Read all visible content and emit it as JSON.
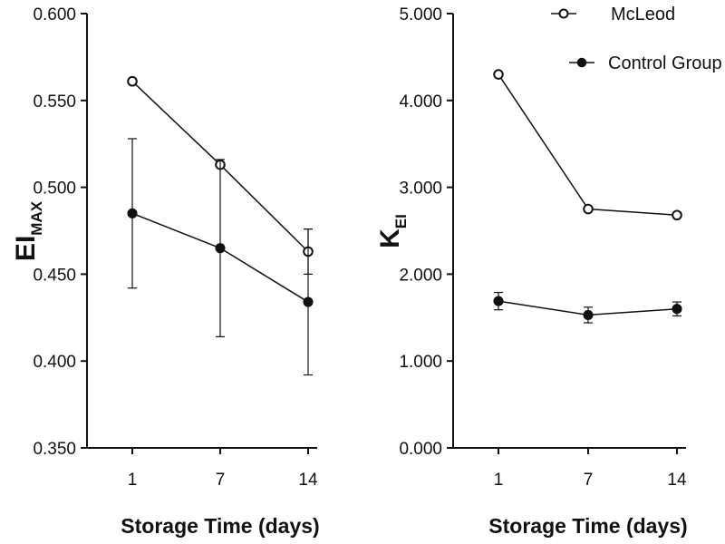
{
  "chart_data": [
    {
      "type": "line",
      "title": "",
      "ylabel_main": "EI",
      "ylabel_sub": "MAX",
      "xlabel": "Storage Time (days)",
      "categories": [
        "1",
        "7",
        "14"
      ],
      "ylim": [
        0.35,
        0.6
      ],
      "yticks": [
        "0.350",
        "0.400",
        "0.450",
        "0.500",
        "0.550",
        "0.600"
      ],
      "series": [
        {
          "name": "McLeod",
          "marker": "open-circle",
          "values": [
            0.561,
            0.513,
            0.463
          ],
          "errors": [
            0,
            0,
            0.013
          ]
        },
        {
          "name": "Control Group",
          "marker": "filled-circle",
          "values": [
            0.485,
            0.465,
            0.434
          ],
          "errors": [
            0.043,
            0.051,
            0.042
          ]
        }
      ]
    },
    {
      "type": "line",
      "title": "",
      "ylabel_main": "K",
      "ylabel_sub": "EI",
      "xlabel": "Storage Time (days)",
      "categories": [
        "1",
        "7",
        "14"
      ],
      "ylim": [
        0,
        5
      ],
      "yticks": [
        "0.000",
        "1.000",
        "2.000",
        "3.000",
        "4.000",
        "5.000"
      ],
      "legend_position": "top-right",
      "series": [
        {
          "name": "McLeod",
          "marker": "open-circle",
          "values": [
            4.3,
            2.75,
            2.68
          ],
          "errors": [
            0,
            0,
            0
          ]
        },
        {
          "name": "Control Group",
          "marker": "filled-circle",
          "values": [
            1.69,
            1.53,
            1.6
          ],
          "errors": [
            0.1,
            0.09,
            0.08
          ]
        }
      ]
    }
  ],
  "legend": {
    "items": [
      {
        "label": "McLeod",
        "marker": "open-circle"
      },
      {
        "label": "Control Group",
        "marker": "filled-circle"
      }
    ]
  }
}
